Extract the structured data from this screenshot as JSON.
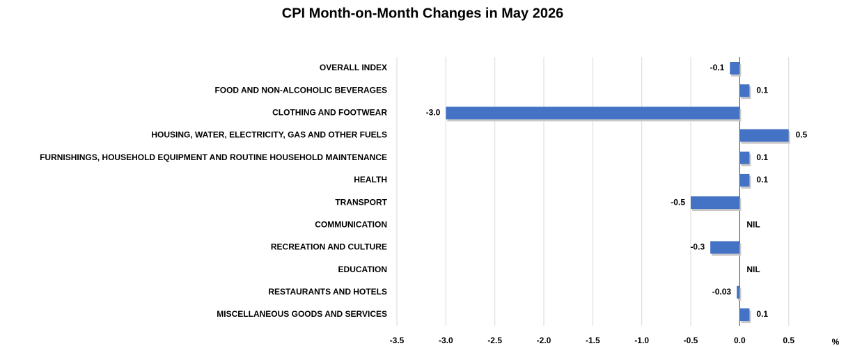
{
  "chart_data": {
    "type": "barh",
    "title": "CPI Month-on-Month Changes in May 2026",
    "x_label": "%",
    "categories": [
      "OVERALL INDEX",
      "FOOD AND NON-ALCOHOLIC BEVERAGES",
      "CLOTHING AND FOOTWEAR",
      "HOUSING, WATER, ELECTRICITY, GAS AND OTHER FUELS",
      "FURNISHINGS, HOUSEHOLD EQUIPMENT AND ROUTINE HOUSEHOLD MAINTENANCE",
      "HEALTH",
      "TRANSPORT",
      "COMMUNICATION",
      "RECREATION AND CULTURE",
      "EDUCATION",
      "RESTAURANTS AND HOTELS",
      "MISCELLANEOUS GOODS AND SERVICES"
    ],
    "values": [
      -0.1,
      0.1,
      -3.0,
      0.5,
      0.1,
      0.1,
      -0.5,
      0,
      -0.3,
      0,
      -0.03,
      0.1
    ],
    "value_labels": [
      "-0.1",
      "0.1",
      "-3.0",
      "0.5",
      "0.1",
      "0.1",
      "-0.5",
      "NIL",
      "-0.3",
      "NIL",
      "-0.03",
      "0.1"
    ],
    "color": "#4472c4",
    "xlim": [
      -3.5,
      1.0
    ],
    "xticks": [
      -3.5,
      {
        "value": -3,
        "label": "-3.0"
      },
      -2.5,
      {
        "value": -2,
        "label": "-2.0"
      },
      -1.5,
      {
        "value": -1,
        "label": "-1.0"
      },
      -0.5,
      {
        "value": 0,
        "label": "0.0"
      },
      0.5
    ],
    "grid": true
  }
}
